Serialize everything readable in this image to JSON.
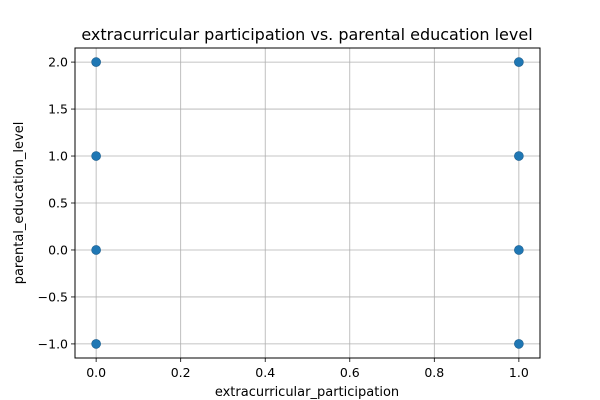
{
  "chart_data": {
    "type": "scatter",
    "title": "extracurricular participation vs. parental education level",
    "xlabel": "extracurricular_participation",
    "ylabel": "parental_education_level",
    "xlim": [
      -0.05,
      1.05
    ],
    "ylim": [
      -1.15,
      2.15
    ],
    "xticks": [
      0.0,
      0.2,
      0.4,
      0.6,
      0.8,
      1.0
    ],
    "xtick_labels": [
      "0.0",
      "0.2",
      "0.4",
      "0.6",
      "0.8",
      "1.0"
    ],
    "yticks": [
      -1.0,
      -0.5,
      0.0,
      0.5,
      1.0,
      1.5,
      2.0
    ],
    "ytick_labels": [
      "−1.0",
      "−0.5",
      "0.0",
      "0.5",
      "1.0",
      "1.5",
      "2.0"
    ],
    "grid": true,
    "marker_color": "#1f77b4",
    "points": [
      {
        "x": 0,
        "y": 2
      },
      {
        "x": 0,
        "y": 1
      },
      {
        "x": 0,
        "y": 0
      },
      {
        "x": 0,
        "y": -1
      },
      {
        "x": 1,
        "y": 2
      },
      {
        "x": 1,
        "y": 1
      },
      {
        "x": 1,
        "y": 0
      },
      {
        "x": 1,
        "y": -1
      }
    ]
  }
}
